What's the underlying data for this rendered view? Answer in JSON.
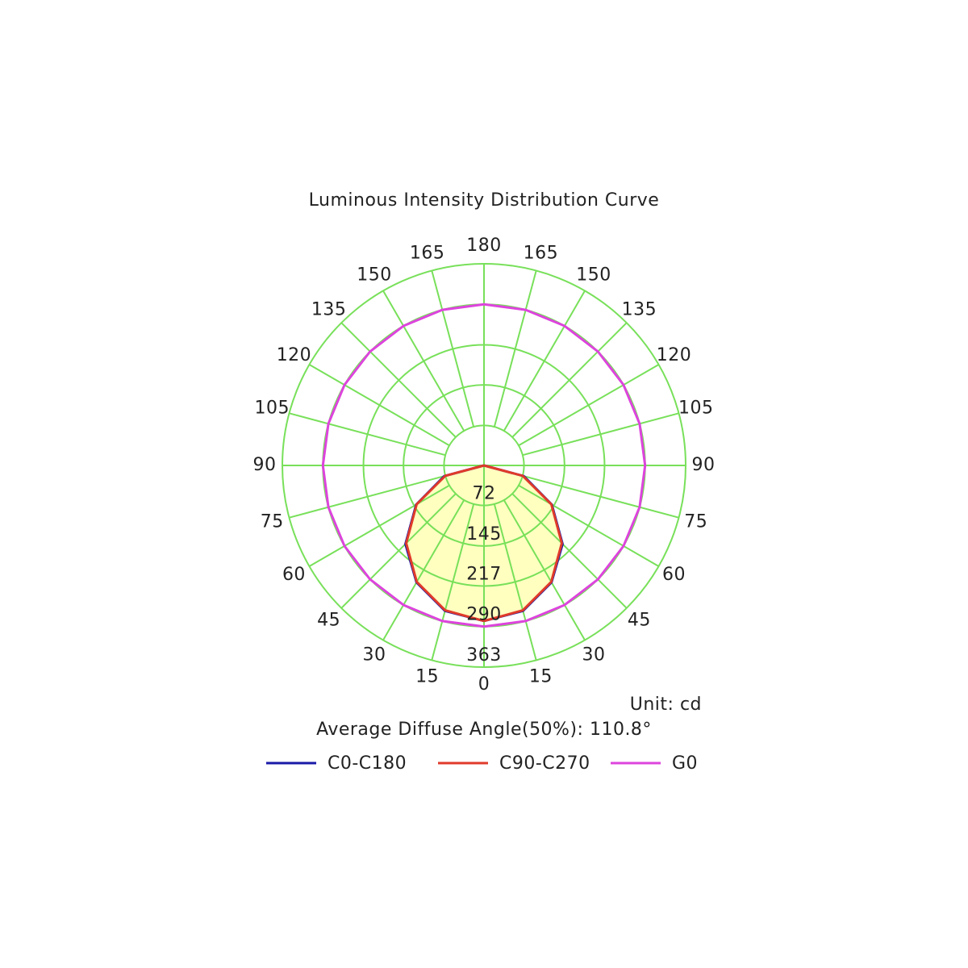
{
  "chart_data": {
    "type": "polar",
    "title": "Luminous Intensity Distribution Curve",
    "unit_label": "Unit: cd",
    "note": "Average Diffuse Angle(50%): 110.8°",
    "angles": [
      0,
      15,
      30,
      45,
      60,
      75,
      90,
      105,
      120,
      135,
      150,
      165,
      180
    ],
    "rlim": [
      0,
      363
    ],
    "rticks": [
      72,
      145,
      217,
      290,
      363
    ],
    "grid": true,
    "grid_color": "#78e05a",
    "area_fill": "#ffffc0",
    "series": [
      {
        "name": "C0-C180",
        "color": "#1a1aa8",
        "values": [
          280,
          271,
          243,
          200,
          141,
          74,
          0,
          null,
          null,
          null,
          null,
          null,
          null
        ]
      },
      {
        "name": "C90-C270",
        "color": "#e03a2a",
        "values": [
          280,
          270,
          242,
          198,
          140,
          72,
          0,
          null,
          null,
          null,
          null,
          null,
          null
        ]
      },
      {
        "name": "G0",
        "color": "#dd44dd",
        "values": [
          290,
          290,
          290,
          290,
          290,
          290,
          290,
          290,
          290,
          290,
          290,
          290,
          290
        ]
      }
    ]
  }
}
